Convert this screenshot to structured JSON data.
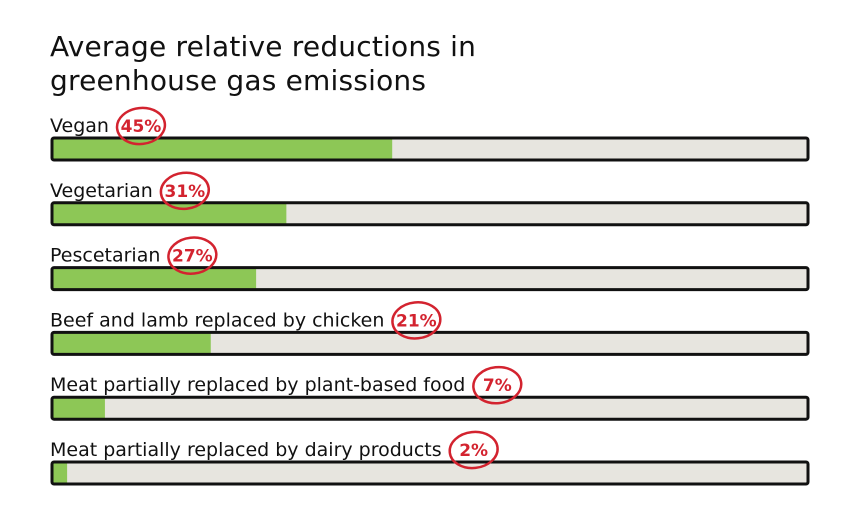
{
  "chart_data": {
    "type": "bar",
    "orientation": "horizontal",
    "title": "Average relative reductions in greenhouse gas emissions",
    "categories": [
      "Vegan",
      "Vegetarian",
      "Pescetarian",
      "Beef and lamb replaced by chicken",
      "Meat partially replaced by plant-based food",
      "Meat partially replaced by dairy products"
    ],
    "values": [
      45,
      31,
      27,
      21,
      7,
      2
    ],
    "value_labels": [
      "45%",
      "31%",
      "27%",
      "21%",
      "7%",
      "2%"
    ],
    "xlim": [
      0,
      100
    ],
    "unit": "%",
    "grid": false,
    "legend": "none"
  },
  "colors": {
    "bar_fill": "#8dc756",
    "track_fill": "#e7e5df",
    "outline": "#111111",
    "value_circle": "#d3232f"
  }
}
